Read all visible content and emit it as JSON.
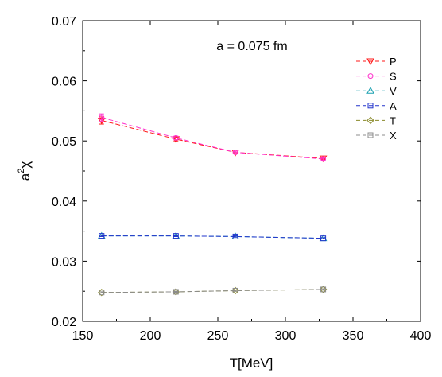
{
  "chart_data": {
    "type": "line",
    "title": "",
    "annotation": "a = 0.075 fm",
    "xlabel": "T[MeV]",
    "ylabel_base": "a",
    "ylabel_sup": "2",
    "ylabel_tail": "χ",
    "xlim": [
      150,
      400
    ],
    "ylim": [
      0.02,
      0.07
    ],
    "xticks": [
      150,
      200,
      250,
      300,
      350,
      400
    ],
    "yticks": [
      0.02,
      0.03,
      0.04,
      0.05,
      0.06,
      0.07
    ],
    "xtick_labels": [
      "150",
      "200",
      "250",
      "300",
      "350",
      "400"
    ],
    "ytick_labels": [
      "0.02",
      "0.03",
      "0.04",
      "0.05",
      "0.06",
      "0.07"
    ],
    "grid": false,
    "legend_position": "top-right",
    "x": [
      164,
      219,
      263,
      328
    ],
    "series": [
      {
        "name": "P",
        "color": "#ff1a1a",
        "marker": "triangle-down",
        "values": [
          0.0534,
          0.0503,
          0.0481,
          0.0471
        ],
        "errors": [
          0.0006,
          0.0003,
          0.0002,
          0.0002
        ]
      },
      {
        "name": "S",
        "color": "#ff33cc",
        "marker": "circle",
        "values": [
          0.0539,
          0.0505,
          0.0481,
          0.047
        ],
        "errors": [
          0.0006,
          0.0003,
          0.0002,
          0.0002
        ]
      },
      {
        "name": "V",
        "color": "#1aa0b0",
        "marker": "triangle-up",
        "values": [
          0.0342,
          0.0342,
          0.0341,
          0.0338
        ],
        "errors": [
          0.0001,
          0.0001,
          0.0001,
          0.0001
        ]
      },
      {
        "name": "A",
        "color": "#2233cc",
        "marker": "square",
        "values": [
          0.0342,
          0.0342,
          0.0341,
          0.0338
        ],
        "errors": [
          0.0001,
          0.0001,
          0.0001,
          0.0001
        ]
      },
      {
        "name": "T",
        "color": "#8a8a2a",
        "marker": "diamond",
        "values": [
          0.0248,
          0.0249,
          0.0251,
          0.0253
        ],
        "errors": [
          0.0001,
          0.0001,
          0.0001,
          0.0001
        ]
      },
      {
        "name": "X",
        "color": "#8c8c8c",
        "marker": "square",
        "values": [
          0.0248,
          0.0249,
          0.0251,
          0.0253
        ],
        "errors": [
          0.0001,
          0.0001,
          0.0001,
          0.0001
        ]
      }
    ]
  }
}
